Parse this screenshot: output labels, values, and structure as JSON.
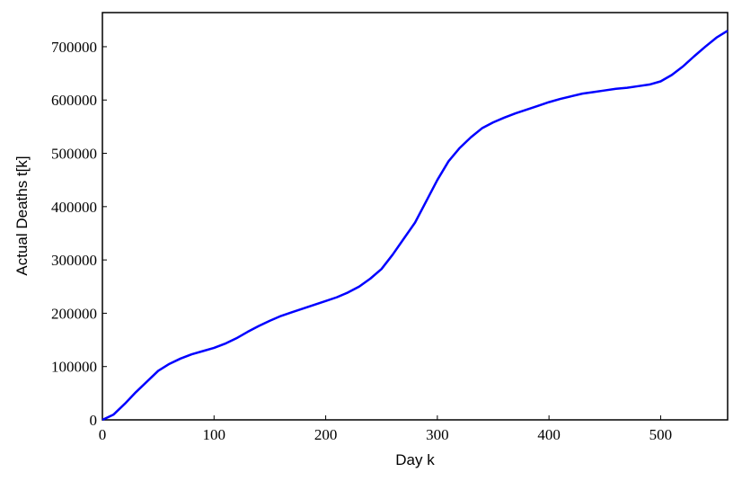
{
  "chart_data": {
    "type": "line",
    "xlabel": "Day k",
    "ylabel": "Actual Deaths t[k]",
    "x": [
      0,
      10,
      20,
      30,
      40,
      50,
      60,
      70,
      80,
      90,
      100,
      110,
      120,
      130,
      140,
      150,
      160,
      170,
      180,
      190,
      200,
      210,
      220,
      230,
      240,
      250,
      260,
      270,
      280,
      290,
      300,
      310,
      320,
      330,
      340,
      350,
      360,
      370,
      380,
      390,
      400,
      410,
      420,
      430,
      440,
      450,
      460,
      470,
      480,
      490,
      500,
      510,
      520,
      530,
      540,
      550,
      560
    ],
    "series": [
      {
        "name": "Actual Deaths",
        "color": "#0000ff",
        "values": [
          0,
          10000,
          30000,
          52000,
          72000,
          92000,
          105000,
          115000,
          123000,
          129000,
          135000,
          143000,
          153000,
          165000,
          176000,
          186000,
          195000,
          202000,
          209000,
          216000,
          223000,
          230000,
          239000,
          250000,
          265000,
          283000,
          310000,
          340000,
          370000,
          410000,
          450000,
          485000,
          510000,
          530000,
          547000,
          558000,
          567000,
          575000,
          582000,
          589000,
          596000,
          602000,
          607000,
          612000,
          615000,
          618000,
          621000,
          623000,
          626000,
          629000,
          635000,
          647000,
          663000,
          682000,
          700000,
          717000,
          730000
        ]
      }
    ],
    "xlim": [
      0,
      560
    ],
    "ylim": [
      0,
      764000
    ],
    "xticks": [
      0,
      100,
      200,
      300,
      400,
      500
    ],
    "yticks": [
      0,
      100000,
      200000,
      300000,
      400000,
      500000,
      600000,
      700000
    ]
  }
}
